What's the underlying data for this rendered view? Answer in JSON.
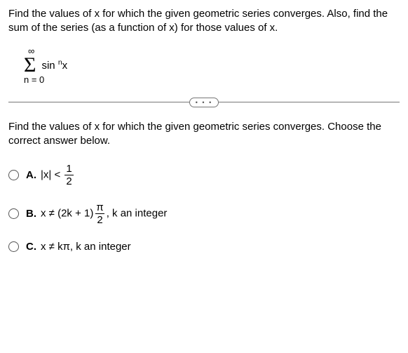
{
  "intro": "Find the values of x for which the given geometric series converges. Also, find the sum of the series (as a function of x) for those values of x.",
  "sigma": {
    "top": "∞",
    "symbol": "Σ",
    "bottom": "n = 0",
    "term_base": "sin",
    "term_exp": "n",
    "term_arg": "x"
  },
  "ellipsis": "• • •",
  "question": "Find the values of x for which the given geometric series converges. Choose the correct answer below.",
  "options": {
    "A": {
      "letter": "A.",
      "pre": "|x| < ",
      "frac_num": "1",
      "frac_den": "2"
    },
    "B": {
      "letter": "B.",
      "pre": "x ≠ (2k + 1)",
      "frac_num": "π",
      "frac_den": "2",
      "post": ", k an integer"
    },
    "C": {
      "letter": "C.",
      "text": "x ≠ kπ, k an integer"
    }
  }
}
